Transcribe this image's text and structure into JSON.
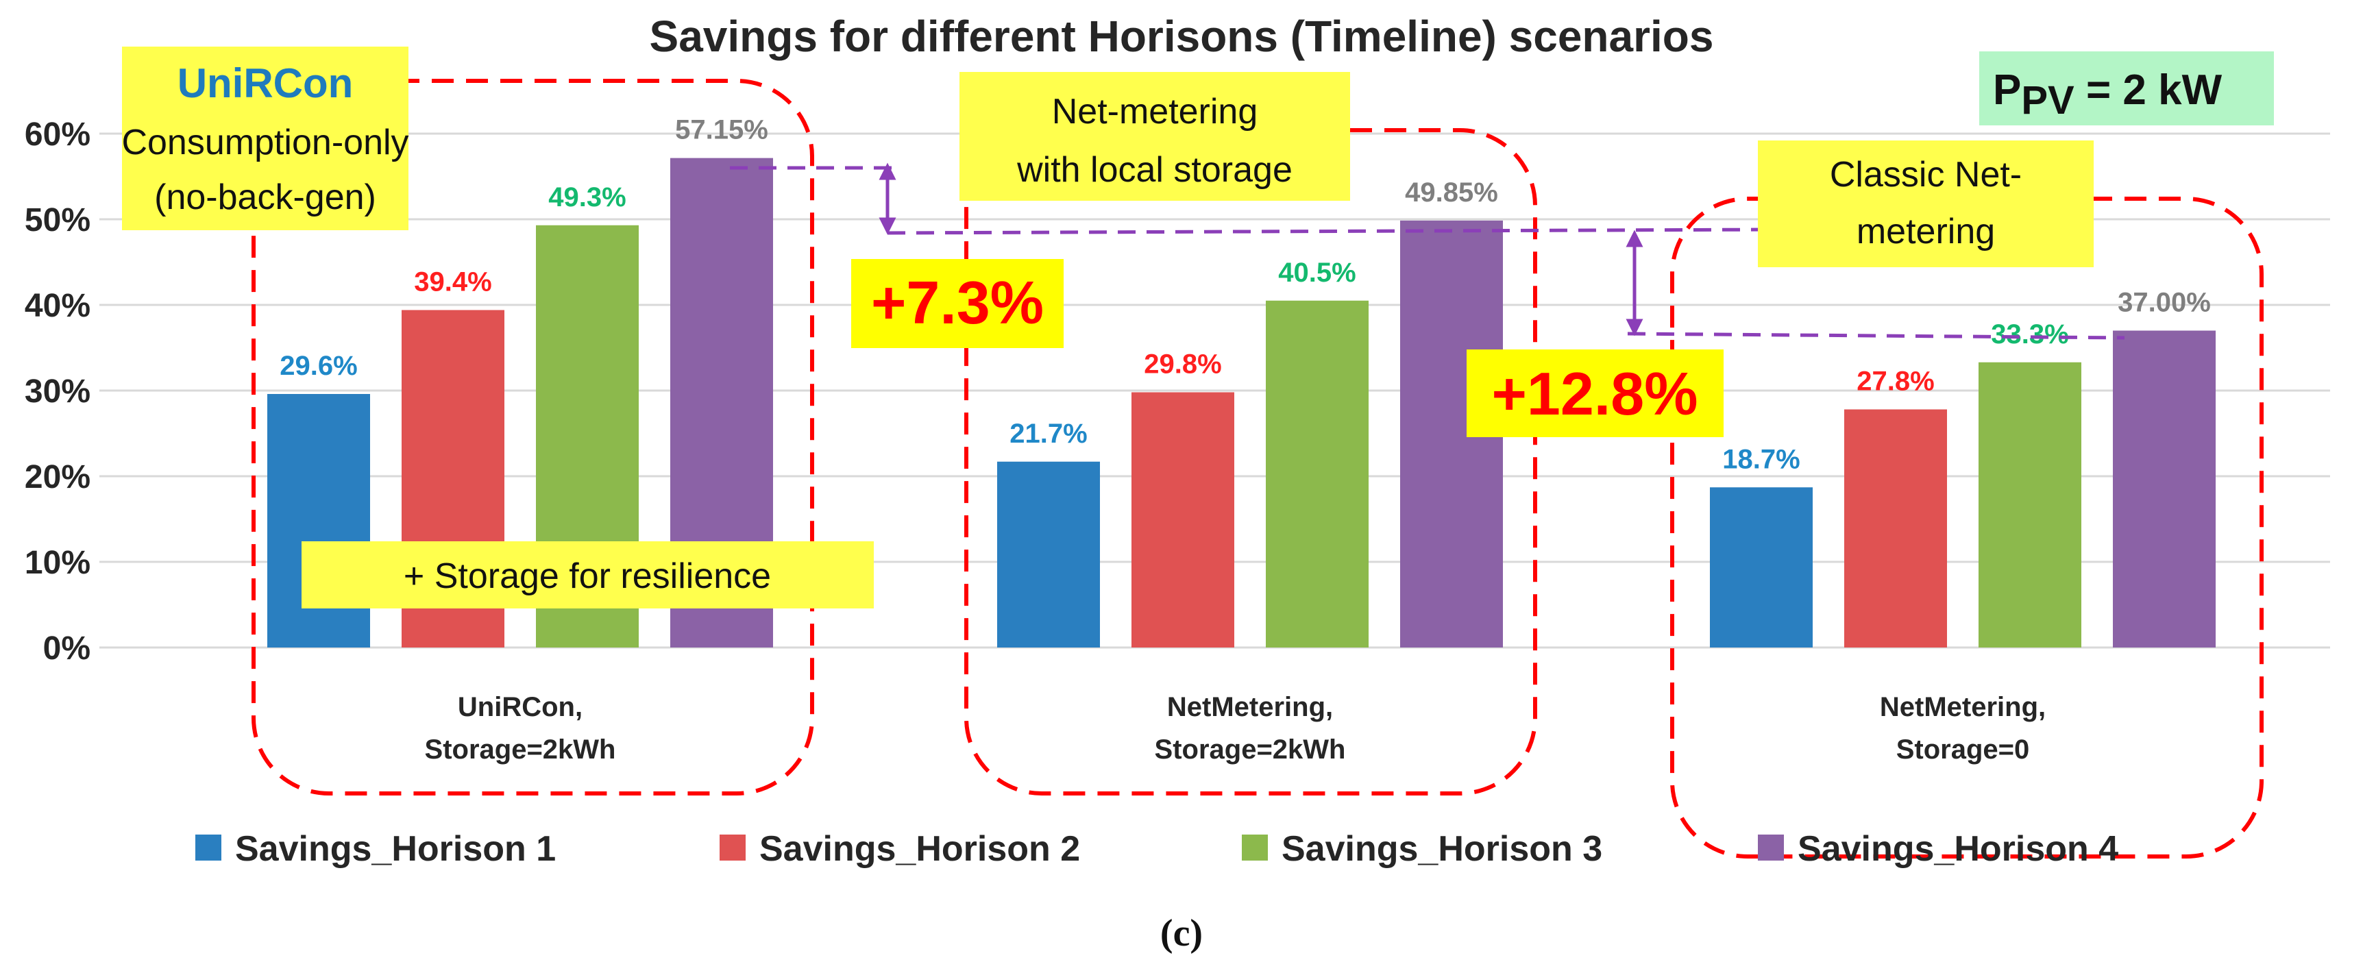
{
  "chart_data": {
    "type": "bar",
    "title": "Savings for different Horisons (Timeline) scenarios",
    "categories": [
      "UniRCon,\nStorage=2kWh",
      "NetMetering,\nStorage=2kWh",
      "NetMetering,\nStorage=0"
    ],
    "series": [
      {
        "name": "Savings_Horison 1",
        "values": [
          29.6,
          21.7,
          18.7
        ],
        "labels": [
          "29.6%",
          "21.7%",
          "18.7%"
        ]
      },
      {
        "name": "Savings_Horison 2",
        "values": [
          39.4,
          29.8,
          27.8
        ],
        "labels": [
          "39.4%",
          "29.8%",
          "27.8%"
        ]
      },
      {
        "name": "Savings_Horison 3",
        "values": [
          49.3,
          40.5,
          33.3
        ],
        "labels": [
          "49.3%",
          "40.5%",
          "33.3%"
        ]
      },
      {
        "name": "Savings_Horison 4",
        "values": [
          57.15,
          49.85,
          37.0
        ],
        "labels": [
          "57.15%",
          "49.85%",
          "37.00%"
        ]
      }
    ],
    "colors": [
      "#2a7fc0",
      "#e05252",
      "#8cb94c",
      "#8b62a6"
    ],
    "label_colors": [
      "#1f88c8",
      "#ff1f1f",
      "#13b96e",
      "#7f7f7f"
    ],
    "ylim": [
      0,
      60
    ],
    "yticks": [
      "0%",
      "10%",
      "20%",
      "30%",
      "40%",
      "50%",
      "60%"
    ],
    "grid": true,
    "legend_position": "bottom",
    "annotations": {
      "unircon_title": "UniRCon",
      "unircon_lines": [
        "Consumption-only",
        "(no-back-gen)"
      ],
      "storage_note": "+ Storage for resilience",
      "netmetering_storage_lines": [
        "Net-metering",
        "with local storage"
      ],
      "classic_lines": [
        "Classic Net-",
        "metering"
      ],
      "diff_1": "+7.3%",
      "diff_2": "+12.8%",
      "ppv_main": "P",
      "ppv_sub": "PV",
      "ppv_rest": " = 2 kW",
      "figure_label": "(c)"
    }
  }
}
